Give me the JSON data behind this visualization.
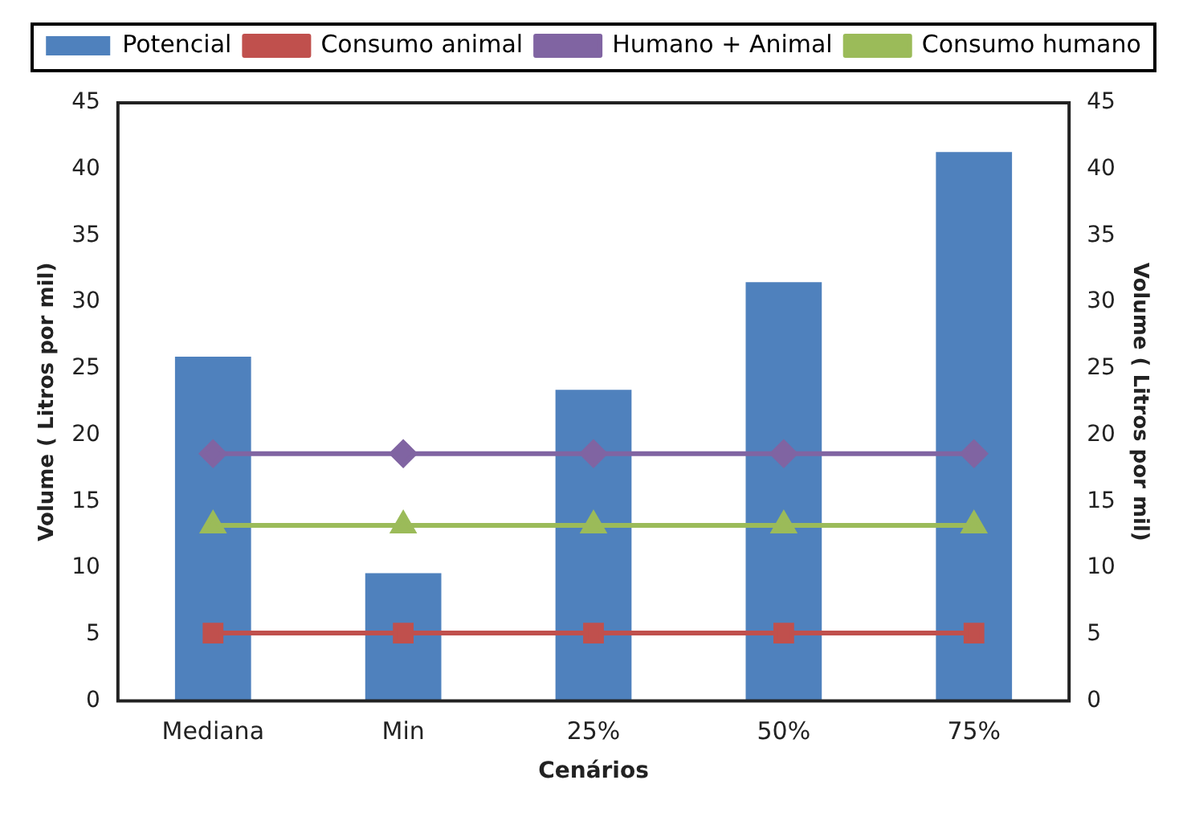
{
  "chart_data": {
    "type": "bar",
    "xlabel": "Cenários",
    "ylabel": "Volume ( Litros por mil)",
    "y2label": "Volume ( Litros por mil)",
    "categories": [
      "Mediana",
      "Min",
      "25%",
      "50%",
      "75%"
    ],
    "series": [
      {
        "name": "Potencial",
        "color": "#4f81bd",
        "values": [
          25.9,
          9.6,
          23.4,
          31.5,
          41.3
        ]
      },
      {
        "name": "Consumo animal",
        "type": "line",
        "marker": "square",
        "color": "#c0504d",
        "values": [
          5.1,
          5.1,
          5.1,
          5.1,
          5.1
        ]
      },
      {
        "name": "Humano + Animal",
        "type": "line",
        "marker": "diamond",
        "color": "#8064a2",
        "values": [
          18.6,
          18.6,
          18.6,
          18.6,
          18.6
        ]
      },
      {
        "name": "Consumo humano",
        "type": "line",
        "marker": "triangle",
        "color": "#9bbb59",
        "values": [
          13.2,
          13.2,
          13.2,
          13.2,
          13.2
        ]
      }
    ],
    "ylim": [
      0,
      45
    ],
    "yticks": [
      0,
      5,
      10,
      15,
      20,
      25,
      30,
      35,
      40,
      45
    ],
    "y2lim": [
      0,
      45
    ],
    "y2ticks": [
      0,
      5,
      10,
      15,
      20,
      25,
      30,
      35,
      40,
      45
    ],
    "grid": false,
    "legend": "top"
  }
}
